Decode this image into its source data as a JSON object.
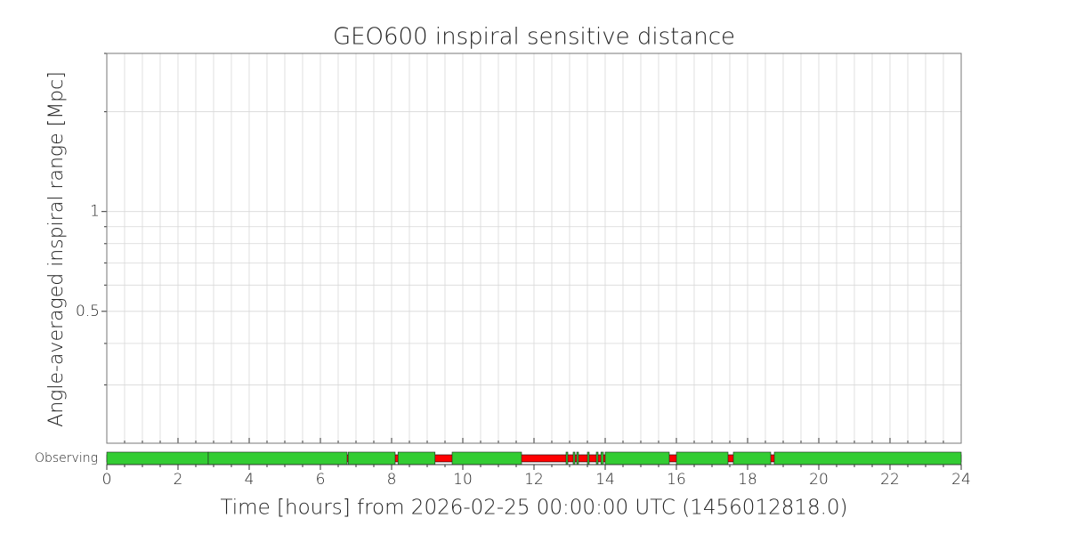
{
  "chart_data": {
    "type": "segments",
    "title": "GEO600 inspiral sensitive distance",
    "ylabel": "Angle-averaged inspiral range [Mpc]",
    "xlabel": "Time [hours] from 2026-02-25 00:00:00 UTC (1456012818.0)",
    "yscale": "log",
    "ylim": [
      0.2,
      3
    ],
    "yticks": [
      0.5,
      1
    ],
    "yminorticks": [
      0.3,
      0.4,
      0.6,
      0.7,
      0.8,
      0.9,
      2,
      3
    ],
    "xlim": [
      0,
      24
    ],
    "xticks": [
      0,
      2,
      4,
      6,
      8,
      10,
      12,
      14,
      16,
      18,
      20,
      22,
      24
    ],
    "grid": true,
    "flag": {
      "name": "Observing",
      "known_color": "#ff0000",
      "active_color": "#33cc33",
      "known": [
        [
          0,
          24
        ]
      ],
      "active": [
        [
          0,
          2.85
        ],
        [
          2.85,
          6.75
        ],
        [
          6.78,
          8.1
        ],
        [
          8.18,
          9.22
        ],
        [
          9.7,
          11.65
        ],
        [
          12.9,
          12.95
        ],
        [
          13.1,
          13.15
        ],
        [
          13.2,
          13.25
        ],
        [
          13.5,
          13.55
        ],
        [
          13.75,
          13.8
        ],
        [
          13.88,
          13.95
        ],
        [
          14.0,
          15.8
        ],
        [
          16.0,
          17.45
        ],
        [
          17.6,
          18.65
        ],
        [
          18.75,
          24
        ]
      ]
    }
  }
}
